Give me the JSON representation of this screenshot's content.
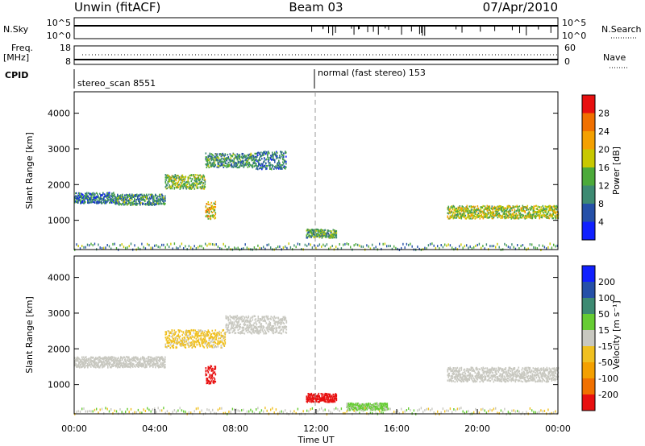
{
  "header": {
    "station": "Unwin (fitACF)",
    "beam": "Beam 03",
    "date": "07/Apr/2010"
  },
  "strip_labels": {
    "nsky": "N.Sky",
    "nsky_ticks": [
      "10^5",
      "10^0"
    ],
    "nsearch": "N.Search",
    "nsearch_ticks": [
      "10^5",
      "10^0"
    ],
    "freq": "Freq.",
    "freq_unit": "[MHz]",
    "freq_ticks": [
      "18",
      "8"
    ],
    "nave": "Nave",
    "nave_ticks": [
      "60",
      "0"
    ],
    "cpid": "CPID"
  },
  "cpid_segments": [
    {
      "label": "stereo_scan 8551"
    },
    {
      "label": "normal (fast stereo) 153"
    }
  ],
  "xaxis": {
    "label": "Time UT",
    "ticks": [
      "00:00",
      "04:00",
      "08:00",
      "12:00",
      "16:00",
      "20:00",
      "00:00"
    ]
  },
  "power_panel": {
    "ylabel": "Slant Range [km]",
    "yticks": [
      "1000",
      "2000",
      "3000",
      "4000"
    ],
    "colorbar_label": "Power [dB]",
    "colorbar_ticks": [
      "4",
      "8",
      "12",
      "16",
      "20",
      "24",
      "28"
    ],
    "colors": [
      "#1020ff",
      "#2550a8",
      "#3d8a72",
      "#4caa3a",
      "#c8c800",
      "#f4a000",
      "#f07000",
      "#e81010"
    ]
  },
  "velocity_panel": {
    "ylabel": "Slant Range [km]",
    "yticks": [
      "1000",
      "2000",
      "3000",
      "4000"
    ],
    "colorbar_label": "Velocity [m s⁻¹]",
    "colorbar_ticks": [
      "-200",
      "-100",
      "-50",
      "-15",
      "15",
      "50",
      "100",
      "200"
    ],
    "colors": [
      "#e81010",
      "#f07000",
      "#f4a000",
      "#f0c020",
      "#c8c8c0",
      "#66cc33",
      "#3d8a72",
      "#2550a8",
      "#1020ff"
    ]
  },
  "chart_data": [
    {
      "type": "heatmap",
      "title": "Power [dB]",
      "xlabel": "Time UT",
      "ylabel": "Slant Range [km]",
      "xlim": [
        0,
        24
      ],
      "ylim": [
        180,
        4600
      ],
      "color_scale": [
        0,
        30
      ],
      "echo_bands": [
        {
          "t_start": 0.0,
          "t_end": 2.0,
          "range_km": 1650,
          "width_km": 150,
          "power_db": 8
        },
        {
          "t_start": 2.0,
          "t_end": 4.5,
          "range_km": 1600,
          "width_km": 150,
          "power_db": 10
        },
        {
          "t_start": 4.5,
          "t_end": 6.5,
          "range_km": 2100,
          "width_km": 200,
          "power_db": 14
        },
        {
          "t_start": 6.5,
          "t_end": 9.0,
          "range_km": 2700,
          "width_km": 200,
          "power_db": 10
        },
        {
          "t_start": 9.0,
          "t_end": 10.5,
          "range_km": 2700,
          "width_km": 250,
          "power_db": 8
        },
        {
          "t_start": 6.5,
          "t_end": 7.0,
          "range_km": 1300,
          "width_km": 250,
          "power_db": 18
        },
        {
          "t_start": 11.5,
          "t_end": 13.0,
          "range_km": 650,
          "width_km": 120,
          "power_db": 12
        },
        {
          "t_start": 18.5,
          "t_end": 24.0,
          "range_km": 1250,
          "width_km": 180,
          "power_db": 16
        }
      ]
    },
    {
      "type": "heatmap",
      "title": "Velocity [m s⁻¹]",
      "xlabel": "Time UT",
      "ylabel": "Slant Range [km]",
      "xlim": [
        0,
        24
      ],
      "ylim": [
        180,
        4600
      ],
      "color_scale": [
        -250,
        250
      ],
      "echo_bands": [
        {
          "t_start": 0.0,
          "t_end": 4.5,
          "range_km": 1650,
          "width_km": 150,
          "velocity": 0
        },
        {
          "t_start": 4.5,
          "t_end": 7.5,
          "range_km": 2300,
          "width_km": 250,
          "velocity": -40
        },
        {
          "t_start": 7.5,
          "t_end": 10.5,
          "range_km": 2700,
          "width_km": 250,
          "velocity": 0
        },
        {
          "t_start": 6.5,
          "t_end": 7.0,
          "range_km": 1300,
          "width_km": 250,
          "velocity": -250
        },
        {
          "t_start": 11.5,
          "t_end": 13.0,
          "range_km": 650,
          "width_km": 120,
          "velocity": -250
        },
        {
          "t_start": 13.5,
          "t_end": 15.5,
          "range_km": 400,
          "width_km": 100,
          "velocity": 40
        },
        {
          "t_start": 18.5,
          "t_end": 24.0,
          "range_km": 1300,
          "width_km": 200,
          "velocity": 0
        }
      ]
    }
  ]
}
